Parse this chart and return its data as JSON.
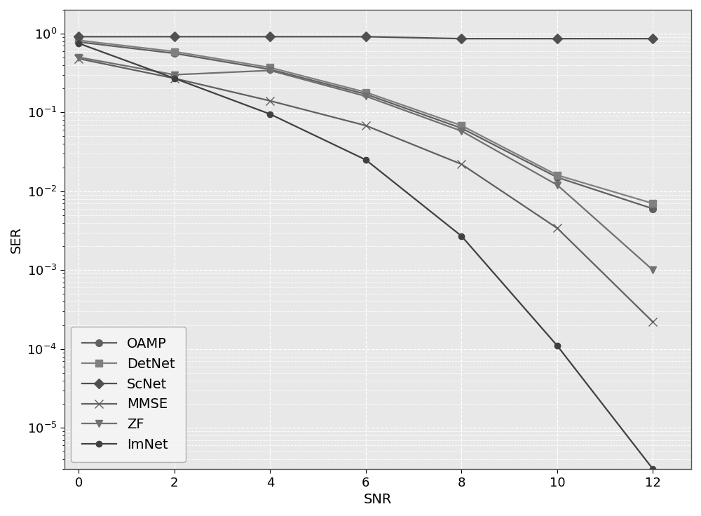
{
  "snr": [
    0,
    2,
    4,
    6,
    8,
    10,
    12
  ],
  "series": {
    "OAMP": {
      "values": [
        0.78,
        0.56,
        0.35,
        0.17,
        0.063,
        0.015,
        0.006
      ],
      "marker": "o",
      "color": "#606060",
      "linewidth": 1.6,
      "markersize": 7,
      "linestyle": "-",
      "zorder": 3
    },
    "DetNet": {
      "values": [
        0.82,
        0.59,
        0.37,
        0.18,
        0.068,
        0.016,
        0.007
      ],
      "marker": "s",
      "color": "#808080",
      "linewidth": 1.6,
      "markersize": 7,
      "linestyle": "-",
      "zorder": 3
    },
    "ScNet": {
      "values": [
        0.91,
        0.91,
        0.91,
        0.91,
        0.86,
        0.86,
        0.86
      ],
      "marker": "D",
      "color": "#505050",
      "linewidth": 1.6,
      "markersize": 7,
      "linestyle": "-",
      "zorder": 3
    },
    "MMSE": {
      "values": [
        0.48,
        0.27,
        0.14,
        0.068,
        0.022,
        0.0034,
        0.00022
      ],
      "marker": "x",
      "color": "#606060",
      "linewidth": 1.6,
      "markersize": 9,
      "linestyle": "-",
      "zorder": 3
    },
    "ZF": {
      "values": [
        0.5,
        0.3,
        0.34,
        0.16,
        0.058,
        0.012,
        0.001
      ],
      "marker": "v",
      "color": "#707070",
      "linewidth": 1.6,
      "markersize": 7,
      "linestyle": "-",
      "zorder": 3
    },
    "ImNet": {
      "values": [
        0.75,
        0.27,
        0.095,
        0.025,
        0.0027,
        0.00011,
        3e-06
      ],
      "marker": "o",
      "color": "#404040",
      "linewidth": 1.6,
      "markersize": 6,
      "linestyle": "-",
      "zorder": 3
    }
  },
  "xlabel": "SNR",
  "ylabel": "SER",
  "xlim": [
    -0.3,
    12.8
  ],
  "ylim": [
    3e-06,
    2.0
  ],
  "xticks": [
    0,
    2,
    4,
    6,
    8,
    10,
    12
  ],
  "background_color": "#ffffff",
  "plot_bg_color": "#e8e8e8",
  "grid_color": "#ffffff",
  "legend_loc": "lower left",
  "fontsize": 14,
  "tick_fontsize": 13
}
